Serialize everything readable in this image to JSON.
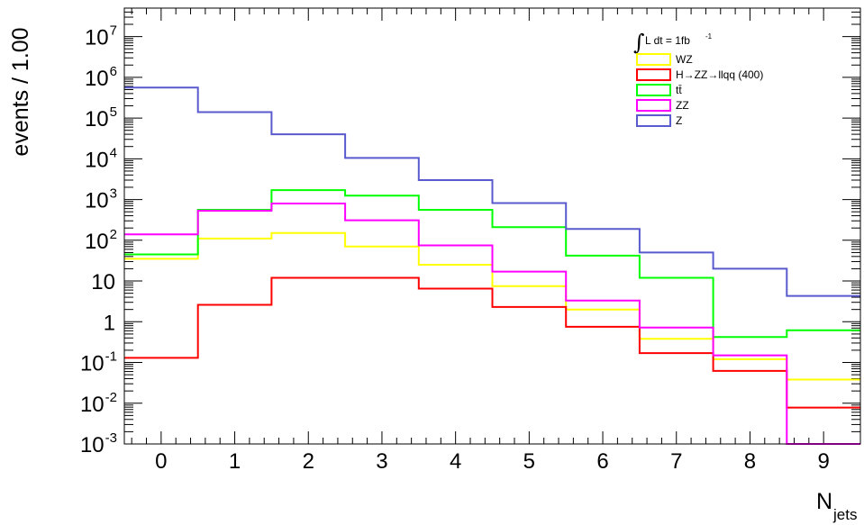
{
  "chart_data": {
    "type": "line",
    "style": "step-histogram",
    "x": [
      0,
      1,
      2,
      3,
      4,
      5,
      6,
      7,
      8,
      9
    ],
    "xlim": [
      -0.5,
      9.5
    ],
    "ylim": [
      0.001,
      50000000
    ],
    "yscale": "log",
    "xlabel": "N",
    "xlabel_sub": "jets",
    "ylabel": "events / 1.00",
    "x_ticks": [
      "0",
      "1",
      "2",
      "3",
      "4",
      "5",
      "6",
      "7",
      "8",
      "9"
    ],
    "y_ticks": [
      {
        "v": 0.001,
        "base": "10",
        "exp": "-3"
      },
      {
        "v": 0.01,
        "base": "10",
        "exp": "-2"
      },
      {
        "v": 0.1,
        "base": "10",
        "exp": "-1"
      },
      {
        "v": 1,
        "base": "1",
        "exp": ""
      },
      {
        "v": 10,
        "base": "10",
        "exp": ""
      },
      {
        "v": 100,
        "base": "10",
        "exp": "2"
      },
      {
        "v": 1000,
        "base": "10",
        "exp": "3"
      },
      {
        "v": 10000,
        "base": "10",
        "exp": "4"
      },
      {
        "v": 100000,
        "base": "10",
        "exp": "5"
      },
      {
        "v": 1000000,
        "base": "10",
        "exp": "6"
      },
      {
        "v": 10000000,
        "base": "10",
        "exp": "7"
      }
    ],
    "legend": {
      "position": "top-right",
      "title": "L dt = 1fb",
      "title_sup": "-1"
    },
    "series": [
      {
        "name": "WZ",
        "color": "#ffff00",
        "values": [
          35,
          110,
          150,
          70,
          25,
          7.5,
          2,
          0.38,
          0.12,
          0.038
        ]
      },
      {
        "name": "H→ZZ→llqq (400)",
        "color": "#ff0000",
        "values": [
          0.13,
          2.6,
          12,
          12,
          6.5,
          2.3,
          0.75,
          0.17,
          0.062,
          0.0078
        ]
      },
      {
        "name": "tt̄",
        "color": "#00ff00",
        "values": [
          45,
          560,
          1700,
          1250,
          560,
          210,
          42,
          12,
          0.42,
          0.62
        ]
      },
      {
        "name": "ZZ",
        "color": "#ff00ff",
        "values": [
          140,
          530,
          800,
          310,
          75,
          17,
          3.3,
          0.72,
          0.15,
          0.0009
        ]
      },
      {
        "name": "Z",
        "color": "#5a5acf",
        "values": [
          560000,
          140000,
          40000,
          10500,
          3000,
          820,
          190,
          50,
          20,
          4.3
        ]
      }
    ]
  }
}
